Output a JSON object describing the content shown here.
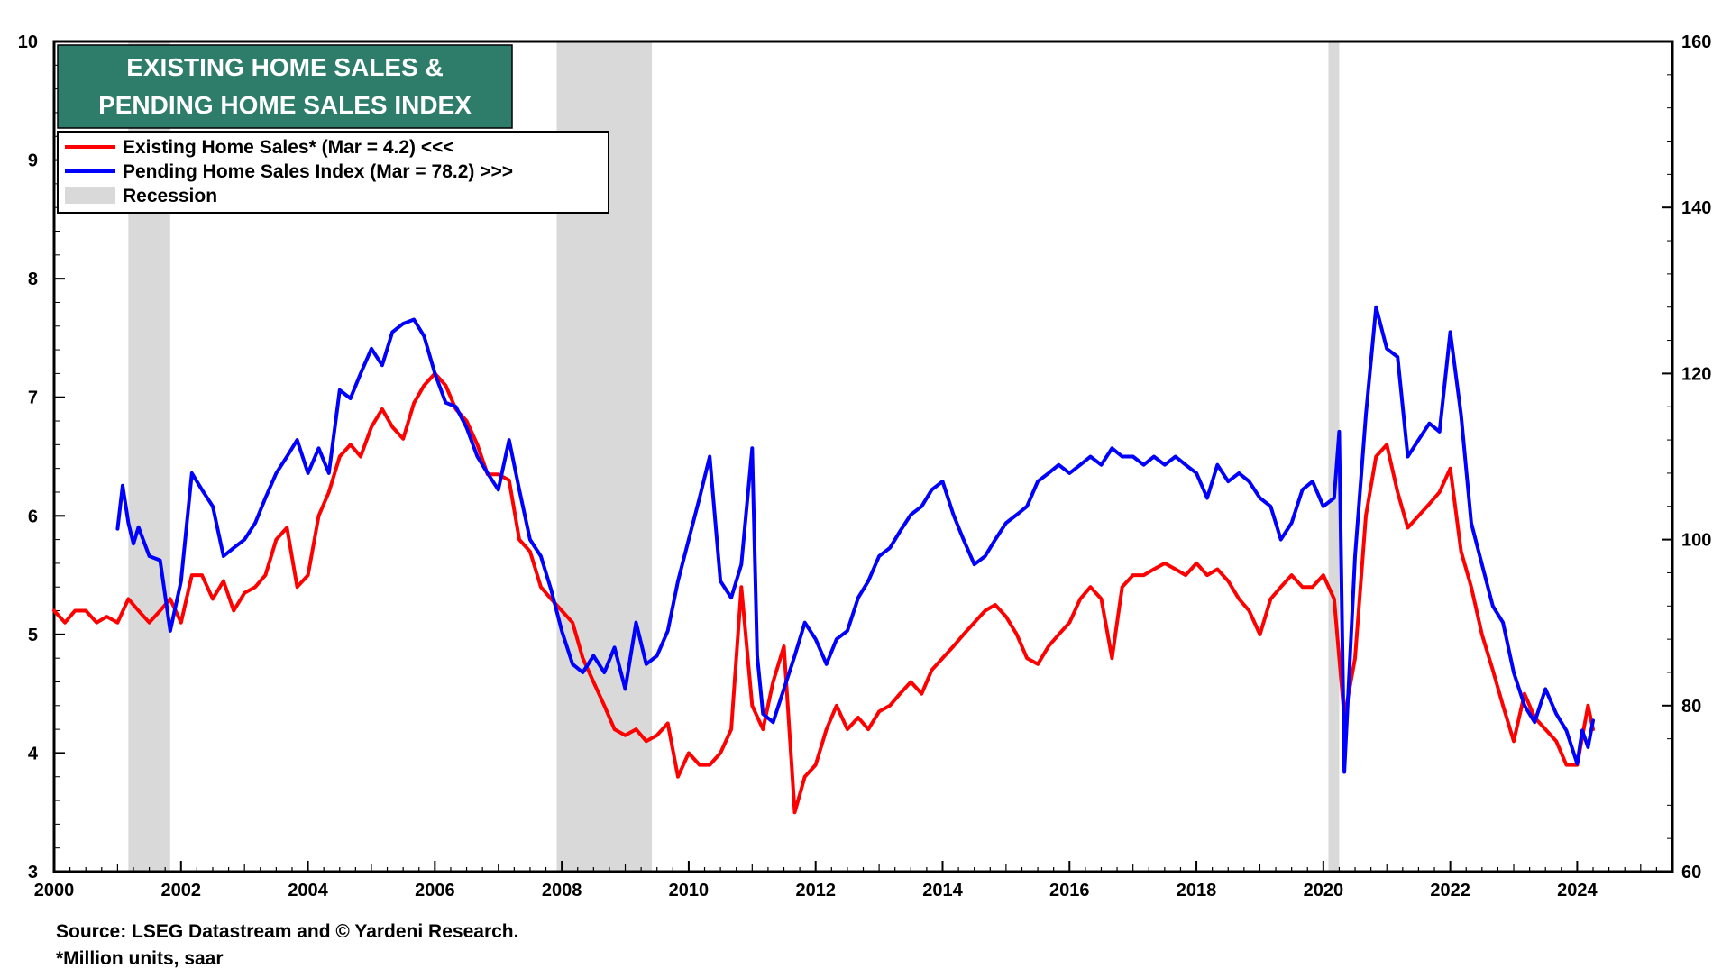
{
  "chart_data": {
    "type": "line",
    "title_lines": [
      "EXISTING HOME SALES &",
      "PENDING HOME SALES INDEX"
    ],
    "legend": [
      {
        "label": "Existing Home Sales* (Mar = 4.2) <<<",
        "color": "#ff0000",
        "kind": "line"
      },
      {
        "label": "Pending Home Sales Index (Mar = 78.2) >>>",
        "color": "#0000ff",
        "kind": "line"
      },
      {
        "label": "Recession",
        "color": "#d9d9d9",
        "kind": "band"
      }
    ],
    "x_range": [
      2000,
      2025.5
    ],
    "x_ticks": [
      "2000",
      "2002",
      "2004",
      "2006",
      "2008",
      "2010",
      "2012",
      "2014",
      "2016",
      "2018",
      "2020",
      "2022",
      "2024"
    ],
    "y_left": {
      "range": [
        3,
        10
      ],
      "ticks": [
        "3",
        "4",
        "5",
        "6",
        "7",
        "8",
        "9",
        "10"
      ]
    },
    "y_right": {
      "range": [
        60,
        160
      ],
      "ticks": [
        "60",
        "80",
        "100",
        "120",
        "140",
        "160"
      ]
    },
    "recessions": [
      [
        2001.17,
        2001.83
      ],
      [
        2007.92,
        2009.42
      ],
      [
        2020.08,
        2020.25
      ]
    ],
    "series": [
      {
        "name": "Existing Home Sales",
        "axis": "left",
        "color": "#ff0000",
        "points": [
          [
            2000,
            5.2
          ],
          [
            2000.17,
            5.1
          ],
          [
            2000.33,
            5.2
          ],
          [
            2000.5,
            5.2
          ],
          [
            2000.67,
            5.1
          ],
          [
            2000.83,
            5.15
          ],
          [
            2001,
            5.1
          ],
          [
            2001.17,
            5.3
          ],
          [
            2001.33,
            5.2
          ],
          [
            2001.5,
            5.1
          ],
          [
            2001.67,
            5.2
          ],
          [
            2001.83,
            5.3
          ],
          [
            2002,
            5.1
          ],
          [
            2002.17,
            5.5
          ],
          [
            2002.33,
            5.5
          ],
          [
            2002.5,
            5.3
          ],
          [
            2002.67,
            5.45
          ],
          [
            2002.83,
            5.2
          ],
          [
            2003,
            5.35
          ],
          [
            2003.17,
            5.4
          ],
          [
            2003.33,
            5.5
          ],
          [
            2003.5,
            5.8
          ],
          [
            2003.67,
            5.9
          ],
          [
            2003.83,
            5.4
          ],
          [
            2004,
            5.5
          ],
          [
            2004.17,
            6.0
          ],
          [
            2004.33,
            6.2
          ],
          [
            2004.5,
            6.5
          ],
          [
            2004.67,
            6.6
          ],
          [
            2004.83,
            6.5
          ],
          [
            2005,
            6.75
          ],
          [
            2005.17,
            6.9
          ],
          [
            2005.33,
            6.75
          ],
          [
            2005.5,
            6.65
          ],
          [
            2005.67,
            6.95
          ],
          [
            2005.83,
            7.1
          ],
          [
            2006,
            7.2
          ],
          [
            2006.17,
            7.1
          ],
          [
            2006.33,
            6.9
          ],
          [
            2006.5,
            6.8
          ],
          [
            2006.67,
            6.6
          ],
          [
            2006.83,
            6.35
          ],
          [
            2007,
            6.35
          ],
          [
            2007.17,
            6.3
          ],
          [
            2007.33,
            5.8
          ],
          [
            2007.5,
            5.7
          ],
          [
            2007.67,
            5.4
          ],
          [
            2007.83,
            5.3
          ],
          [
            2008,
            5.2
          ],
          [
            2008.17,
            5.1
          ],
          [
            2008.33,
            4.8
          ],
          [
            2008.5,
            4.6
          ],
          [
            2008.67,
            4.4
          ],
          [
            2008.83,
            4.2
          ],
          [
            2009,
            4.15
          ],
          [
            2009.17,
            4.2
          ],
          [
            2009.33,
            4.1
          ],
          [
            2009.5,
            4.15
          ],
          [
            2009.67,
            4.25
          ],
          [
            2009.83,
            3.8
          ],
          [
            2010,
            4.0
          ],
          [
            2010.17,
            3.9
          ],
          [
            2010.33,
            3.9
          ],
          [
            2010.5,
            4.0
          ],
          [
            2010.67,
            4.2
          ],
          [
            2010.83,
            5.4
          ],
          [
            2011,
            4.4
          ],
          [
            2011.17,
            4.2
          ],
          [
            2011.33,
            4.6
          ],
          [
            2011.5,
            4.9
          ],
          [
            2011.67,
            3.5
          ],
          [
            2011.83,
            3.8
          ],
          [
            2012,
            3.9
          ],
          [
            2012.17,
            4.2
          ],
          [
            2012.33,
            4.4
          ],
          [
            2012.5,
            4.2
          ],
          [
            2012.67,
            4.3
          ],
          [
            2012.83,
            4.2
          ],
          [
            2013,
            4.35
          ],
          [
            2013.17,
            4.4
          ],
          [
            2013.33,
            4.5
          ],
          [
            2013.5,
            4.6
          ],
          [
            2013.67,
            4.5
          ],
          [
            2013.83,
            4.7
          ],
          [
            2014,
            4.8
          ],
          [
            2014.17,
            4.9
          ],
          [
            2014.33,
            5.0
          ],
          [
            2014.5,
            5.1
          ],
          [
            2014.67,
            5.2
          ],
          [
            2014.83,
            5.25
          ],
          [
            2015,
            5.15
          ],
          [
            2015.17,
            5.0
          ],
          [
            2015.33,
            4.8
          ],
          [
            2015.5,
            4.75
          ],
          [
            2015.67,
            4.9
          ],
          [
            2015.83,
            5.0
          ],
          [
            2016,
            5.1
          ],
          [
            2016.17,
            5.3
          ],
          [
            2016.33,
            5.4
          ],
          [
            2016.5,
            5.3
          ],
          [
            2016.67,
            4.8
          ],
          [
            2016.83,
            5.4
          ],
          [
            2017,
            5.5
          ],
          [
            2017.17,
            5.5
          ],
          [
            2017.33,
            5.55
          ],
          [
            2017.5,
            5.6
          ],
          [
            2017.67,
            5.55
          ],
          [
            2017.83,
            5.5
          ],
          [
            2018,
            5.6
          ],
          [
            2018.17,
            5.5
          ],
          [
            2018.33,
            5.55
          ],
          [
            2018.5,
            5.45
          ],
          [
            2018.67,
            5.3
          ],
          [
            2018.83,
            5.2
          ],
          [
            2019,
            5.0
          ],
          [
            2019.17,
            5.3
          ],
          [
            2019.33,
            5.4
          ],
          [
            2019.5,
            5.5
          ],
          [
            2019.67,
            5.4
          ],
          [
            2019.83,
            5.4
          ],
          [
            2020,
            5.5
          ],
          [
            2020.17,
            5.3
          ],
          [
            2020.33,
            4.3
          ],
          [
            2020.5,
            4.8
          ],
          [
            2020.67,
            6.0
          ],
          [
            2020.83,
            6.5
          ],
          [
            2021,
            6.6
          ],
          [
            2021.17,
            6.2
          ],
          [
            2021.33,
            5.9
          ],
          [
            2021.5,
            6.0
          ],
          [
            2021.67,
            6.1
          ],
          [
            2021.83,
            6.2
          ],
          [
            2022,
            6.4
          ],
          [
            2022.17,
            5.7
          ],
          [
            2022.33,
            5.4
          ],
          [
            2022.5,
            5.0
          ],
          [
            2022.67,
            4.7
          ],
          [
            2022.83,
            4.4
          ],
          [
            2023,
            4.1
          ],
          [
            2023.17,
            4.5
          ],
          [
            2023.33,
            4.3
          ],
          [
            2023.5,
            4.2
          ],
          [
            2023.67,
            4.1
          ],
          [
            2023.83,
            3.9
          ],
          [
            2024,
            3.9
          ],
          [
            2024.17,
            4.4
          ],
          [
            2024.25,
            4.2
          ]
        ]
      },
      {
        "name": "Pending Home Sales Index",
        "axis": "right",
        "color": "#0000ff",
        "points": [
          [
            2001,
            101.3
          ],
          [
            2001.08,
            106.5
          ],
          [
            2001.17,
            102
          ],
          [
            2001.25,
            99.5
          ],
          [
            2001.33,
            101.5
          ],
          [
            2001.5,
            98
          ],
          [
            2001.67,
            97.5
          ],
          [
            2001.83,
            89
          ],
          [
            2002,
            95
          ],
          [
            2002.17,
            108
          ],
          [
            2002.33,
            106
          ],
          [
            2002.5,
            104
          ],
          [
            2002.67,
            98
          ],
          [
            2002.83,
            99
          ],
          [
            2003,
            100
          ],
          [
            2003.17,
            102
          ],
          [
            2003.33,
            105
          ],
          [
            2003.5,
            108
          ],
          [
            2003.67,
            110
          ],
          [
            2003.83,
            112
          ],
          [
            2004,
            108
          ],
          [
            2004.17,
            111
          ],
          [
            2004.33,
            108
          ],
          [
            2004.5,
            118
          ],
          [
            2004.67,
            117
          ],
          [
            2004.83,
            120
          ],
          [
            2005,
            123
          ],
          [
            2005.17,
            121
          ],
          [
            2005.33,
            125
          ],
          [
            2005.5,
            126
          ],
          [
            2005.67,
            126.5
          ],
          [
            2005.83,
            124.5
          ],
          [
            2006,
            120
          ],
          [
            2006.17,
            116.5
          ],
          [
            2006.33,
            116
          ],
          [
            2006.5,
            113.5
          ],
          [
            2006.67,
            110
          ],
          [
            2006.83,
            108
          ],
          [
            2007,
            106
          ],
          [
            2007.17,
            112
          ],
          [
            2007.33,
            106
          ],
          [
            2007.5,
            100
          ],
          [
            2007.67,
            98
          ],
          [
            2007.83,
            94
          ],
          [
            2008,
            89
          ],
          [
            2008.17,
            85
          ],
          [
            2008.33,
            84
          ],
          [
            2008.5,
            86
          ],
          [
            2008.67,
            84
          ],
          [
            2008.83,
            87
          ],
          [
            2009,
            82
          ],
          [
            2009.17,
            90
          ],
          [
            2009.33,
            85
          ],
          [
            2009.5,
            86
          ],
          [
            2009.67,
            89
          ],
          [
            2009.83,
            95
          ],
          [
            2010,
            100
          ],
          [
            2010.17,
            105
          ],
          [
            2010.33,
            110
          ],
          [
            2010.5,
            95
          ],
          [
            2010.67,
            93
          ],
          [
            2010.83,
            97
          ],
          [
            2011,
            111
          ],
          [
            2011.08,
            86
          ],
          [
            2011.17,
            79
          ],
          [
            2011.33,
            78
          ],
          [
            2011.5,
            82
          ],
          [
            2011.67,
            86
          ],
          [
            2011.83,
            90
          ],
          [
            2012,
            88
          ],
          [
            2012.17,
            85
          ],
          [
            2012.33,
            88
          ],
          [
            2012.5,
            89
          ],
          [
            2012.67,
            93
          ],
          [
            2012.83,
            95
          ],
          [
            2013,
            98
          ],
          [
            2013.17,
            99
          ],
          [
            2013.33,
            101
          ],
          [
            2013.5,
            103
          ],
          [
            2013.67,
            104
          ],
          [
            2013.83,
            106
          ],
          [
            2014,
            107
          ],
          [
            2014.17,
            103
          ],
          [
            2014.33,
            100
          ],
          [
            2014.5,
            97
          ],
          [
            2014.67,
            98
          ],
          [
            2014.83,
            100
          ],
          [
            2015,
            102
          ],
          [
            2015.17,
            103
          ],
          [
            2015.33,
            104
          ],
          [
            2015.5,
            107
          ],
          [
            2015.67,
            108
          ],
          [
            2015.83,
            109
          ],
          [
            2016,
            108
          ],
          [
            2016.17,
            109
          ],
          [
            2016.33,
            110
          ],
          [
            2016.5,
            109
          ],
          [
            2016.67,
            111
          ],
          [
            2016.83,
            110
          ],
          [
            2017,
            110
          ],
          [
            2017.17,
            109
          ],
          [
            2017.33,
            110
          ],
          [
            2017.5,
            109
          ],
          [
            2017.67,
            110
          ],
          [
            2017.83,
            109
          ],
          [
            2018,
            108
          ],
          [
            2018.17,
            105
          ],
          [
            2018.33,
            109
          ],
          [
            2018.5,
            107
          ],
          [
            2018.67,
            108
          ],
          [
            2018.83,
            107
          ],
          [
            2019,
            105
          ],
          [
            2019.17,
            104
          ],
          [
            2019.33,
            100
          ],
          [
            2019.5,
            102
          ],
          [
            2019.67,
            106
          ],
          [
            2019.83,
            107
          ],
          [
            2020,
            104
          ],
          [
            2020.17,
            105
          ],
          [
            2020.25,
            113
          ],
          [
            2020.33,
            72
          ],
          [
            2020.5,
            98
          ],
          [
            2020.67,
            115
          ],
          [
            2020.83,
            128
          ],
          [
            2021,
            123
          ],
          [
            2021.17,
            122
          ],
          [
            2021.33,
            110
          ],
          [
            2021.5,
            112
          ],
          [
            2021.67,
            114
          ],
          [
            2021.83,
            113
          ],
          [
            2022,
            125
          ],
          [
            2022.17,
            115
          ],
          [
            2022.33,
            102
          ],
          [
            2022.5,
            97
          ],
          [
            2022.67,
            92
          ],
          [
            2022.83,
            90
          ],
          [
            2023,
            84
          ],
          [
            2023.17,
            80
          ],
          [
            2023.33,
            78
          ],
          [
            2023.5,
            82
          ],
          [
            2023.67,
            79
          ],
          [
            2023.83,
            77
          ],
          [
            2024,
            73
          ],
          [
            2024.08,
            77
          ],
          [
            2024.17,
            75
          ],
          [
            2024.25,
            78.2
          ]
        ]
      }
    ]
  },
  "footer": {
    "source": "Source: LSEG Datastream and © Yardeni Research.",
    "note": "*Million units, saar"
  }
}
